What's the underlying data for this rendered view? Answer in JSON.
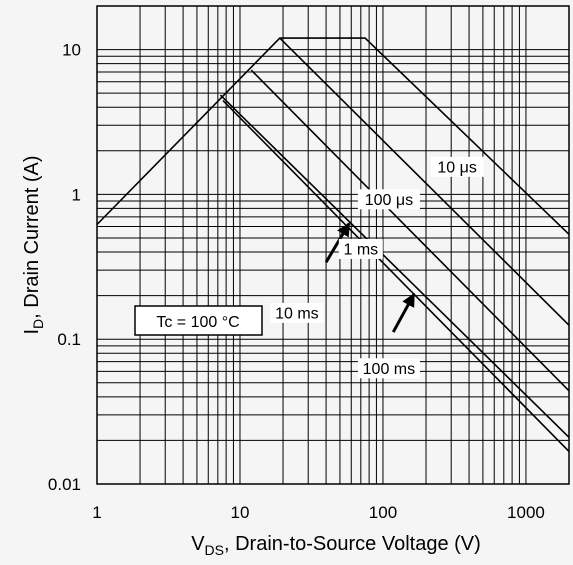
{
  "chart_data": {
    "type": "line",
    "title": "",
    "xlabel": {
      "main": "V",
      "sub": "DS",
      "rest": ", Drain-to-Source Voltage (V)"
    },
    "ylabel": {
      "main": "I",
      "sub": "D",
      "rest": ", Drain Current (A)"
    },
    "xscale": "log",
    "yscale": "log",
    "xlim": [
      1,
      2000
    ],
    "ylim": [
      0.01,
      20
    ],
    "x_ticks": [
      {
        "value": 1,
        "label": "1"
      },
      {
        "value": 10,
        "label": "10"
      },
      {
        "value": 100,
        "label": "100"
      },
      {
        "value": 1000,
        "label": "1000"
      }
    ],
    "y_ticks": [
      {
        "value": 0.01,
        "label": "0.01"
      },
      {
        "value": 0.1,
        "label": "0.1"
      },
      {
        "value": 1,
        "label": "1"
      },
      {
        "value": 10,
        "label": "10"
      }
    ],
    "grid": true,
    "series": [
      {
        "name": "10 μs",
        "points": [
          [
            1,
            0.62
          ],
          [
            19.0,
            12.0
          ],
          [
            75,
            12.0
          ],
          [
            2000,
            0.53
          ]
        ]
      },
      {
        "name": "100 μs",
        "points": [
          [
            19.0,
            12.0
          ],
          [
            2000,
            0.125
          ]
        ]
      },
      {
        "name": "1 ms",
        "points": [
          [
            12.0,
            7.2
          ],
          [
            2000,
            0.044
          ]
        ]
      },
      {
        "name": "10 ms",
        "points": [
          [
            7.3,
            4.85
          ],
          [
            2000,
            0.021
          ]
        ]
      },
      {
        "name": "100 ms",
        "points": [
          [
            7.6,
            4.45
          ],
          [
            2000,
            0.0168
          ]
        ]
      }
    ],
    "annotations": [
      {
        "text": "10 μs",
        "x": 330,
        "y": 1.55,
        "arrow": false
      },
      {
        "text": "100 μs",
        "x": 110,
        "y": 0.925,
        "arrow": false
      },
      {
        "text": "1 ms",
        "x": 70,
        "y": 0.42,
        "arrow": false
      },
      {
        "text": "10 ms",
        "x": 25,
        "y": 0.152,
        "arrow": true,
        "arrow_to": [
          58,
          0.63
        ],
        "arrow_from": [
          40,
          0.34
        ]
      },
      {
        "text": "100 ms",
        "x": 110,
        "y": 0.063,
        "arrow": true,
        "arrow_to": [
          165,
          0.205
        ],
        "arrow_from": [
          118,
          0.112
        ]
      }
    ],
    "condition_label": "Tc = 100 °C"
  }
}
